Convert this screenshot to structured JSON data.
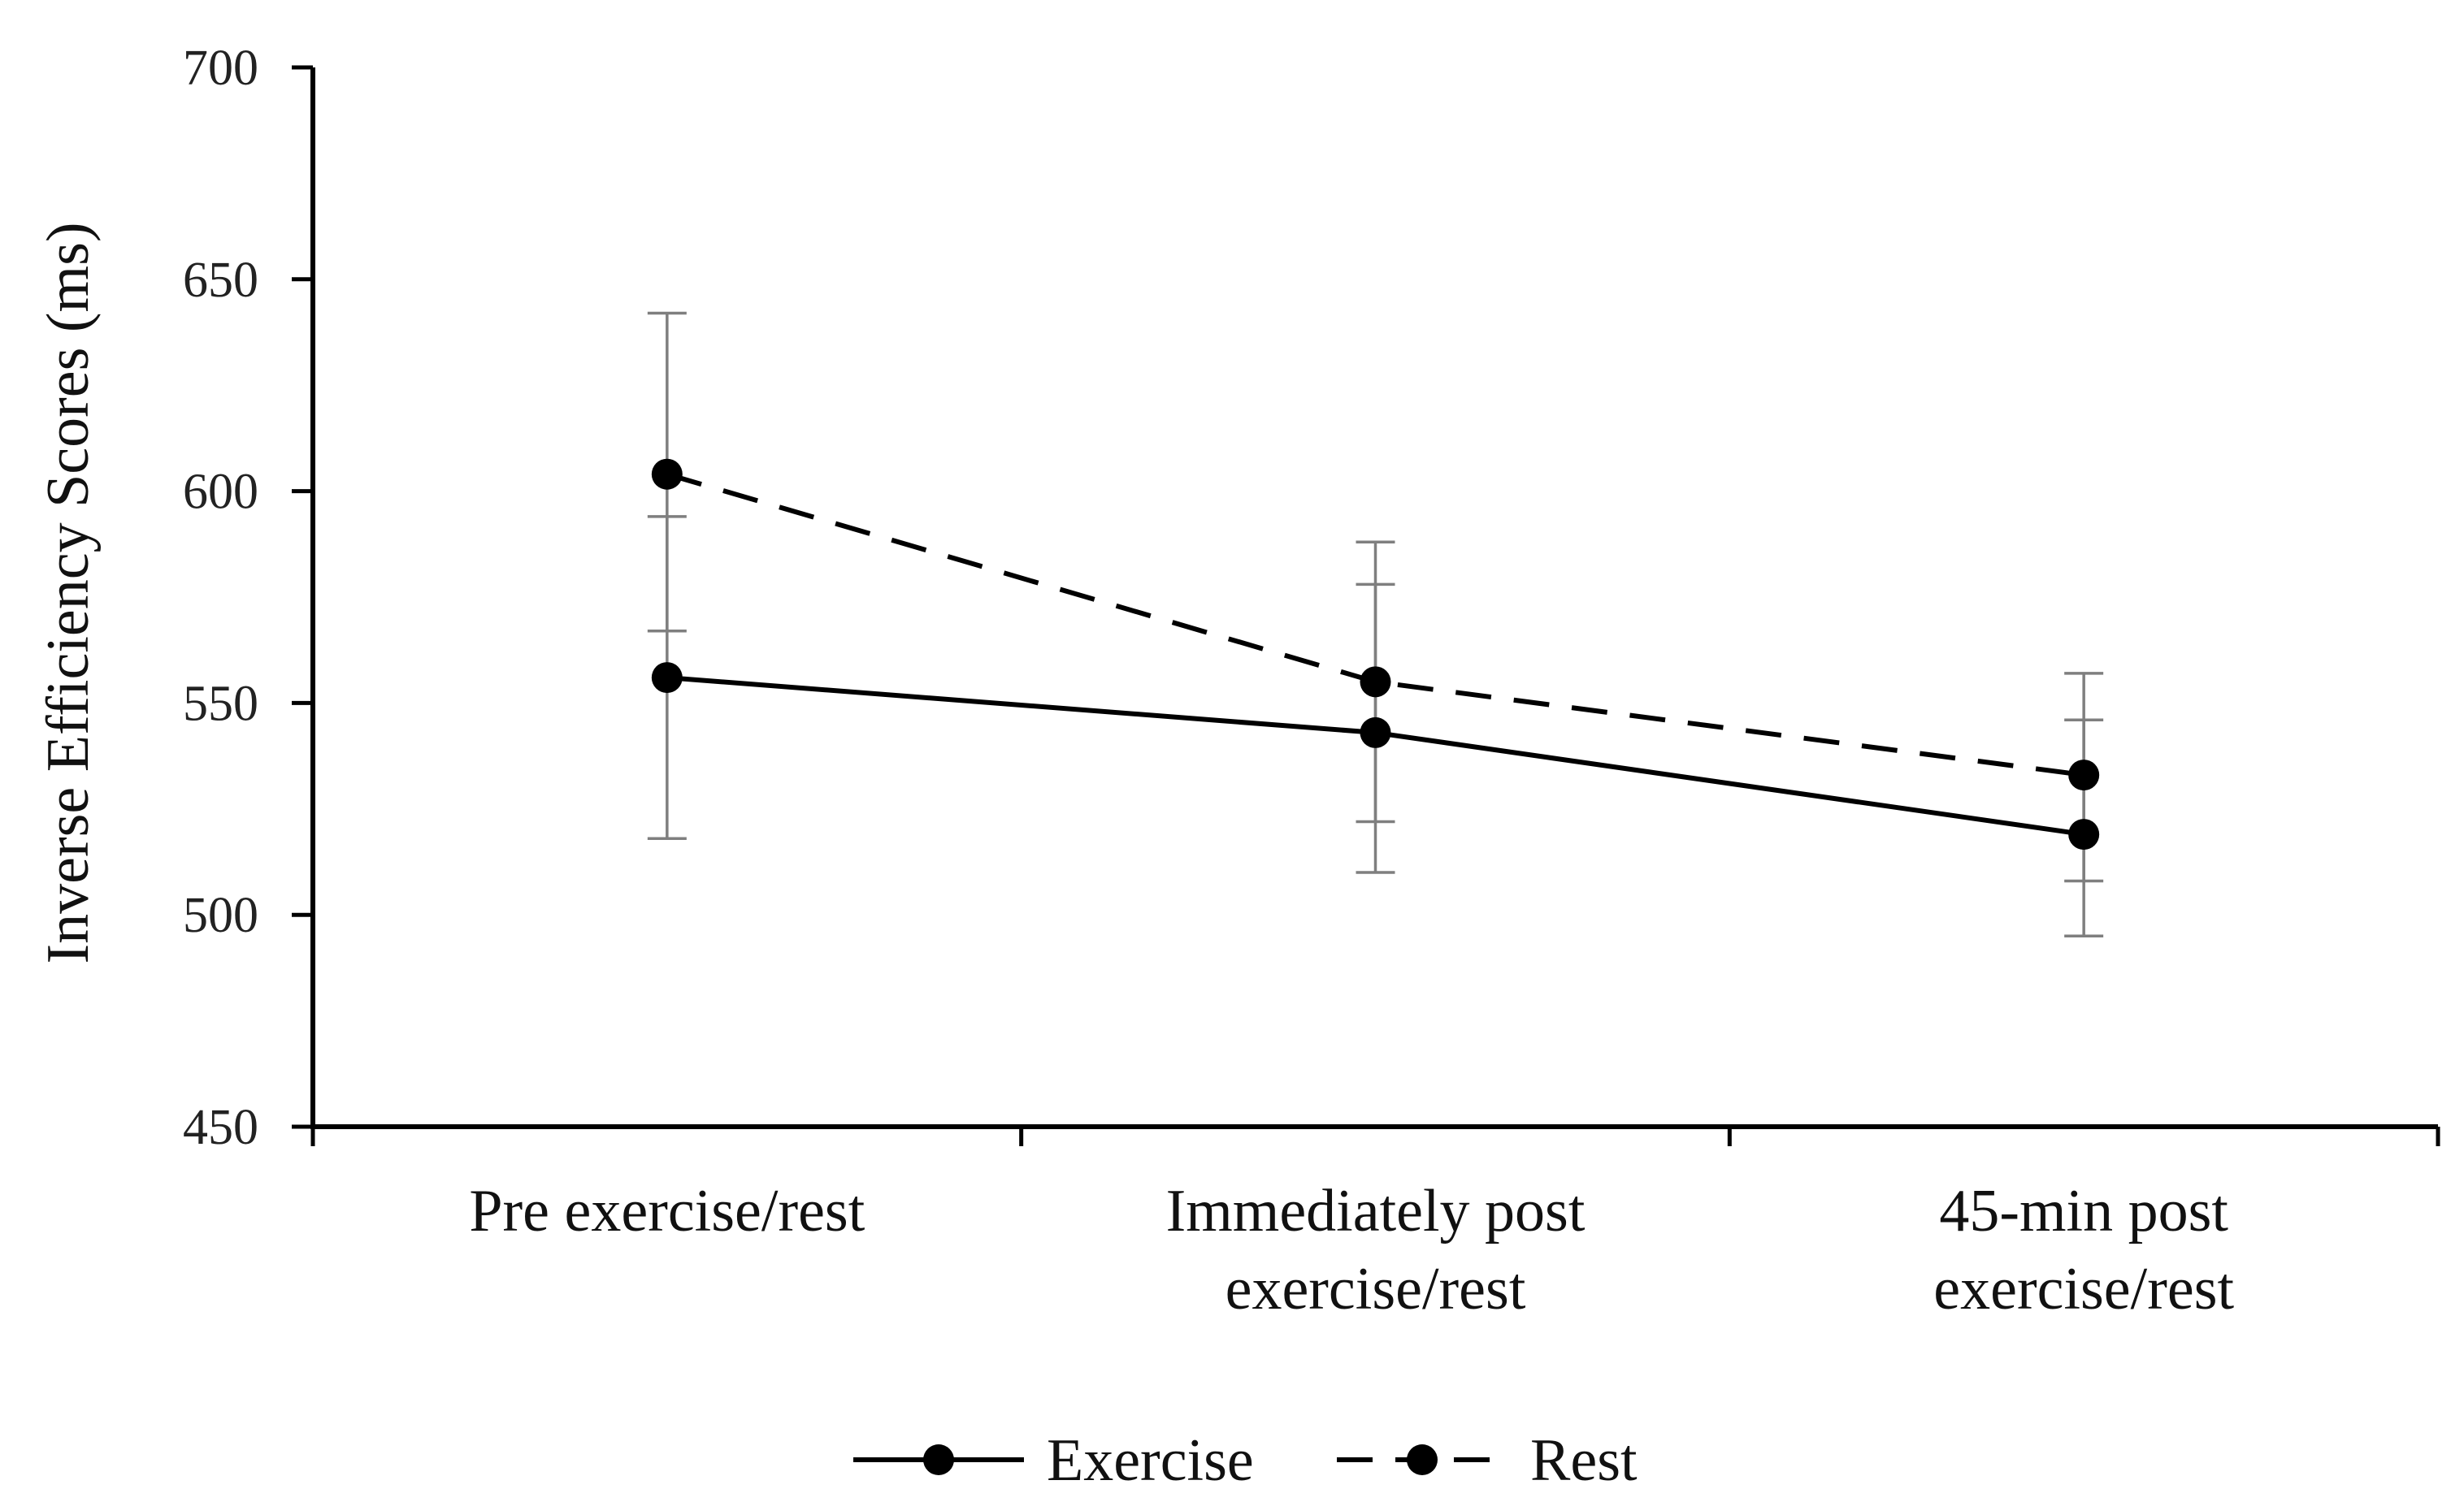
{
  "chart_data": {
    "type": "line",
    "title": "",
    "xlabel": "",
    "ylabel": "Inverse Efficiency Scores (ms)",
    "ylim": [
      450,
      700
    ],
    "yticks": [
      450,
      500,
      550,
      600,
      650,
      700
    ],
    "grid": false,
    "categories": [
      [
        "Pre exercise/rest"
      ],
      [
        "Immediately post",
        "exercise/rest"
      ],
      [
        "45-min post",
        "exercise/rest"
      ]
    ],
    "series": [
      {
        "name": "Exercise",
        "line_style": "solid",
        "values": [
          556,
          543,
          519
        ],
        "error_low": [
          518,
          510,
          495
        ],
        "error_high": [
          594,
          578,
          546
        ]
      },
      {
        "name": "Rest",
        "line_style": "dashed",
        "values": [
          604,
          555,
          533
        ],
        "error_low": [
          567,
          522,
          508
        ],
        "error_high": [
          642,
          588,
          557
        ]
      }
    ],
    "legend_position": "bottom-center",
    "colors": {
      "line": "#000000",
      "error_bar": "#7f7f7f",
      "axis": "#000000"
    }
  }
}
